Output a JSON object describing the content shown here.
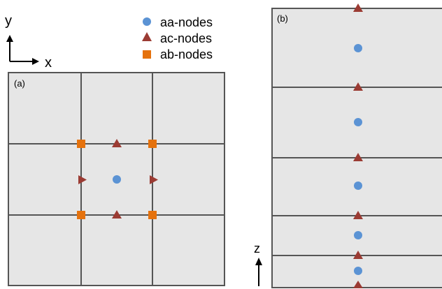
{
  "axes_2d": {
    "y_label": "y",
    "x_label": "x"
  },
  "axis_z": {
    "label": "z"
  },
  "legend": {
    "items": [
      {
        "label": "aa-nodes",
        "marker": "circle",
        "color": "#5b93d4"
      },
      {
        "label": "ac-nodes",
        "marker": "triangle",
        "color": "#9b3b33"
      },
      {
        "label": "ab-nodes",
        "marker": "square",
        "color": "#e5720d"
      }
    ]
  },
  "panel_a": {
    "label": "(a)"
  },
  "panel_b": {
    "label": "(b)"
  },
  "colors": {
    "panel_fill": "#e6e6e6",
    "grid_line": "#555555",
    "aa": "#5b93d4",
    "ac": "#9b3b33",
    "ab": "#e5720d"
  }
}
